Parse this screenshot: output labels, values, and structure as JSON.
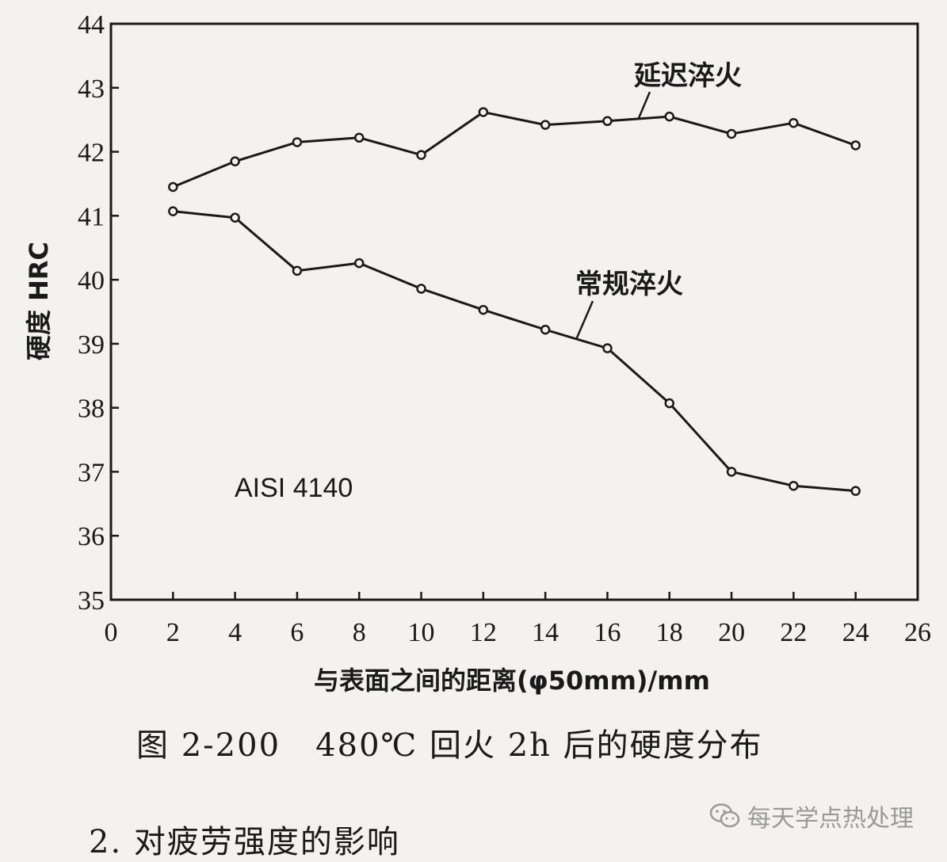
{
  "chart_data": {
    "type": "line",
    "xlabel": "与表面之间的距离(φ50mm)/mm",
    "ylabel": "硬度  HRC",
    "xlim": [
      0,
      26
    ],
    "ylim": [
      35,
      44
    ],
    "xticks": [
      0,
      2,
      4,
      6,
      8,
      10,
      12,
      14,
      16,
      18,
      20,
      22,
      24,
      26
    ],
    "yticks": [
      35,
      36,
      37,
      38,
      39,
      40,
      41,
      42,
      43,
      44
    ],
    "grid": false,
    "annotation": "AISI 4140",
    "x": [
      2,
      4,
      6,
      8,
      10,
      12,
      14,
      16,
      18,
      20,
      22,
      24
    ],
    "series": [
      {
        "name": "延迟淬火",
        "values": [
          41.45,
          41.85,
          42.15,
          42.22,
          41.95,
          42.62,
          42.42,
          42.48,
          42.55,
          42.28,
          42.45,
          42.1
        ]
      },
      {
        "name": "常规淬火",
        "values": [
          41.07,
          40.97,
          40.14,
          40.26,
          39.86,
          39.53,
          39.22,
          38.93,
          38.07,
          37.0,
          36.78,
          36.7
        ]
      }
    ]
  },
  "caption": "图 2-200   480℃ 回火 2h 后的硬度分布",
  "section_heading": "2. 对疲劳强度的影响",
  "watermark": {
    "icon": "wechat-icon",
    "text": "每天学点热处理"
  }
}
